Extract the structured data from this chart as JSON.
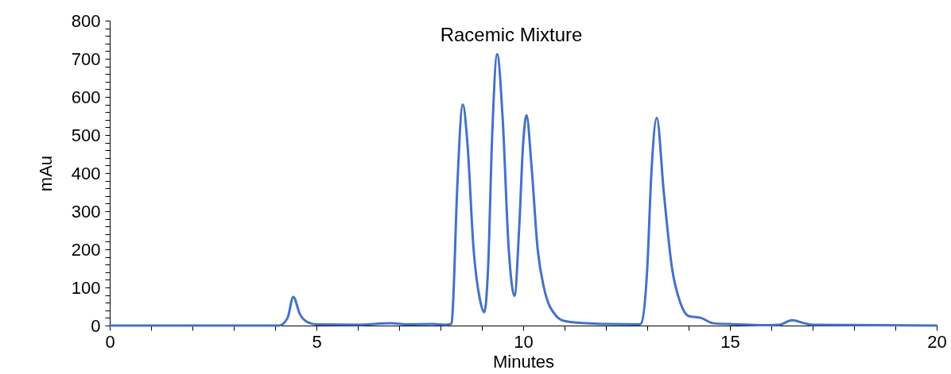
{
  "chart_data": {
    "type": "line",
    "title": "Racemic Mixture",
    "xlabel": "Minutes",
    "ylabel": "mAu",
    "series": [
      {
        "color": "#4472c4",
        "x": [
          0,
          4.1,
          4.3,
          4.44,
          4.6,
          4.8,
          5,
          6,
          6.8,
          7.2,
          7.8,
          8.1,
          8.27,
          8.3,
          8.4,
          8.54,
          8.65,
          8.8,
          8.95,
          9.06,
          9.15,
          9.25,
          9.37,
          9.5,
          9.65,
          9.79,
          9.9,
          10,
          10.08,
          10.2,
          10.35,
          10.5,
          10.8,
          11,
          11.5,
          12,
          12.8,
          12.85,
          13,
          13.1,
          13.23,
          13.4,
          13.6,
          13.8,
          14,
          14.3,
          14.6,
          15,
          16,
          16.2,
          16.5,
          16.8,
          17,
          20
        ],
        "values": [
          0,
          0,
          20,
          75,
          30,
          8,
          3,
          2,
          6,
          3,
          4,
          2,
          5,
          50,
          350,
          580,
          480,
          200,
          70,
          35,
          150,
          500,
          712,
          550,
          200,
          78,
          250,
          480,
          552,
          420,
          200,
          100,
          25,
          12,
          6,
          4,
          3,
          5,
          150,
          400,
          545,
          350,
          150,
          60,
          25,
          20,
          6,
          4,
          1,
          2,
          14,
          6,
          2,
          0
        ]
      }
    ],
    "xlim": [
      0,
      20
    ],
    "xticks": [
      0,
      {
        "value": 1,
        "label": null
      },
      {
        "value": 2,
        "label": null
      },
      {
        "value": 3,
        "label": null
      },
      {
        "value": 4,
        "label": null
      },
      5,
      {
        "value": 6,
        "label": null
      },
      {
        "value": 7,
        "label": null
      },
      {
        "value": 8,
        "label": null
      },
      {
        "value": 9,
        "label": null
      },
      10,
      {
        "value": 11,
        "label": null
      },
      {
        "value": 12,
        "label": null
      },
      {
        "value": 13,
        "label": null
      },
      {
        "value": 14,
        "label": null
      },
      15,
      {
        "value": 16,
        "label": null
      },
      {
        "value": 17,
        "label": null
      },
      {
        "value": 18,
        "label": null
      },
      {
        "value": 19,
        "label": null
      },
      20
    ],
    "ylim": [
      0,
      800
    ],
    "yticks": [
      0,
      {
        "value": 20,
        "label": null
      },
      {
        "value": 40,
        "label": null
      },
      {
        "value": 60,
        "label": null
      },
      {
        "value": 80,
        "label": null
      },
      100,
      {
        "value": 120,
        "label": null
      },
      {
        "value": 140,
        "label": null
      },
      {
        "value": 160,
        "label": null
      },
      {
        "value": 180,
        "label": null
      },
      200,
      {
        "value": 220,
        "label": null
      },
      {
        "value": 240,
        "label": null
      },
      {
        "value": 260,
        "label": null
      },
      {
        "value": 280,
        "label": null
      },
      300,
      {
        "value": 320,
        "label": null
      },
      {
        "value": 340,
        "label": null
      },
      {
        "value": 360,
        "label": null
      },
      {
        "value": 380,
        "label": null
      },
      400,
      {
        "value": 420,
        "label": null
      },
      {
        "value": 440,
        "label": null
      },
      {
        "value": 460,
        "label": null
      },
      {
        "value": 480,
        "label": null
      },
      500,
      {
        "value": 520,
        "label": null
      },
      {
        "value": 540,
        "label": null
      },
      {
        "value": 560,
        "label": null
      },
      {
        "value": 580,
        "label": null
      },
      600,
      {
        "value": 620,
        "label": null
      },
      {
        "value": 640,
        "label": null
      },
      {
        "value": 660,
        "label": null
      },
      {
        "value": 680,
        "label": null
      },
      700,
      {
        "value": 720,
        "label": null
      },
      {
        "value": 740,
        "label": null
      },
      {
        "value": 760,
        "label": null
      },
      {
        "value": 780,
        "label": null
      },
      800
    ],
    "grid": false,
    "marker": "none",
    "line_style": "solid"
  }
}
